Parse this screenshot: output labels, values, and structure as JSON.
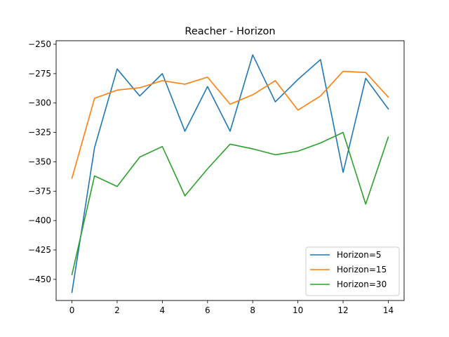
{
  "chart_data": {
    "type": "line",
    "title": "Reacher - Horizon",
    "xlabel": "",
    "ylabel": "",
    "xlim": [
      -0.7,
      14.7
    ],
    "ylim": [
      -468,
      -247
    ],
    "xticks": [
      0,
      2,
      4,
      6,
      8,
      10,
      12,
      14
    ],
    "yticks": [
      -450,
      -425,
      -400,
      -375,
      -350,
      -325,
      -300,
      -275,
      -250
    ],
    "ytick_labels": [
      "−450",
      "−425",
      "−400",
      "−375",
      "−350",
      "−325",
      "−300",
      "−275",
      "−250"
    ],
    "grid": false,
    "legend_position": "lower-right",
    "x": [
      0,
      1,
      2,
      3,
      4,
      5,
      6,
      7,
      8,
      9,
      10,
      11,
      12,
      13,
      14
    ],
    "series": [
      {
        "name": "Horizon=5",
        "color": "#1f77b4",
        "values": [
          -461,
          -338,
          -271,
          -294,
          -275,
          -324,
          -286,
          -324,
          -259,
          -299,
          -280,
          -263,
          -359,
          -279,
          -305
        ]
      },
      {
        "name": "Horizon=15",
        "color": "#ff7f0e",
        "values": [
          -364,
          -296,
          -289,
          -287,
          -281,
          -284,
          -278,
          -301,
          -293,
          -281,
          -306,
          -294,
          -273,
          -274,
          -295
        ]
      },
      {
        "name": "Horizon=30",
        "color": "#2ca02c",
        "values": [
          -446,
          -362,
          -371,
          -346,
          -337,
          -379,
          -356,
          -335,
          -339,
          -344,
          -341,
          -334,
          -325,
          -386,
          -329
        ]
      }
    ]
  }
}
